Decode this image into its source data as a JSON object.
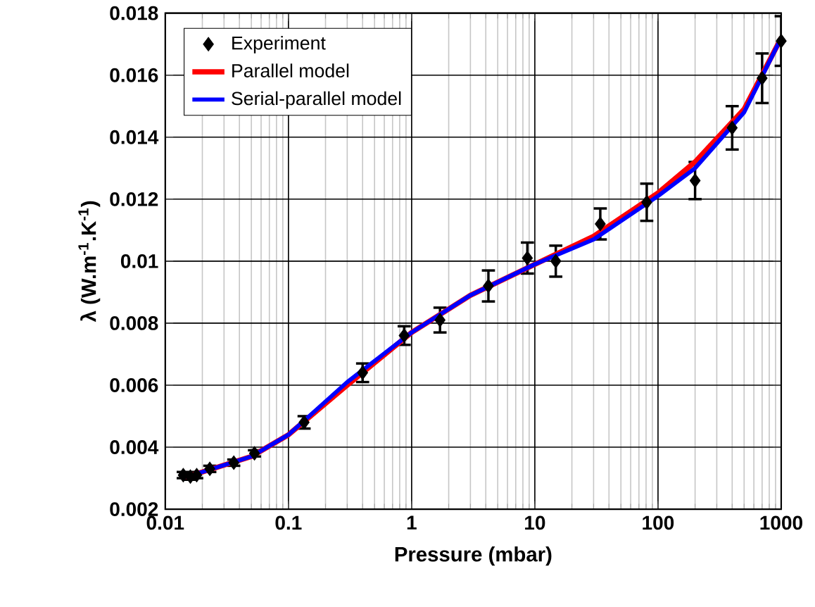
{
  "chart_data": {
    "type": "line",
    "xlabel": "Pressure (mbar)",
    "ylabel": "λ (W.m$^{-1}$.K$^{-1}$)",
    "log": "x",
    "grid": true,
    "legend": "top left",
    "xlim": [
      0.01,
      1000
    ],
    "xticks": [
      0.01,
      0.1,
      1,
      10,
      100,
      1000
    ],
    "ylim": [
      0.002,
      0.018
    ],
    "yticks": [
      0.002,
      0.004,
      0.006,
      0.008,
      0.01,
      0.012,
      0.014,
      0.016,
      0.018
    ],
    "series": [
      {
        "name": "Experiment",
        "type": "scatter",
        "marker": "diamond",
        "color": "#000000",
        "x": [
          0.014,
          0.016,
          0.018,
          0.023,
          0.036,
          0.053,
          0.134,
          0.4,
          0.87,
          1.7,
          4.2,
          8.7,
          14.8,
          34,
          81,
          200,
          400,
          700,
          1000
        ],
        "values": [
          0.0031,
          0.00305,
          0.0031,
          0.0033,
          0.0035,
          0.0038,
          0.0048,
          0.0064,
          0.0076,
          0.0081,
          0.0092,
          0.0101,
          0.01,
          0.0112,
          0.0119,
          0.0126,
          0.0143,
          0.0159,
          0.0171
        ],
        "errors": [
          0.0001,
          0.0001,
          0.0001,
          0.0001,
          0.0001,
          0.0001,
          0.0002,
          0.0003,
          0.0003,
          0.0004,
          0.0005,
          0.0005,
          0.0005,
          0.0005,
          0.0006,
          0.0006,
          0.0007,
          0.0008,
          0.0008
        ]
      },
      {
        "name": "Parallel model",
        "color": "#ff0000",
        "x": [
          0.014,
          0.02,
          0.05,
          0.1,
          0.3,
          1,
          3,
          10,
          30,
          100,
          200,
          500,
          1000
        ],
        "values": [
          0.00303,
          0.0032,
          0.0037,
          0.0044,
          0.006,
          0.0077,
          0.0089,
          0.0099,
          0.0108,
          0.0122,
          0.0132,
          0.0149,
          0.0172
        ]
      },
      {
        "name": "Serial-parallel model",
        "color": "#0000ff",
        "x": [
          0.014,
          0.02,
          0.05,
          0.1,
          0.3,
          1,
          3,
          10,
          30,
          100,
          200,
          500,
          1000
        ],
        "values": [
          0.00303,
          0.0032,
          0.0037,
          0.0044,
          0.0061,
          0.0077,
          0.0089,
          0.0099,
          0.0107,
          0.0121,
          0.013,
          0.0148,
          0.0172
        ]
      }
    ]
  }
}
